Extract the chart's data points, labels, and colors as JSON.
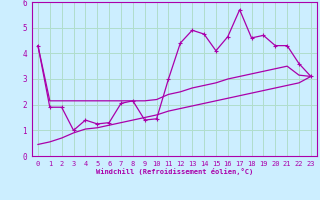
{
  "xlabel": "Windchill (Refroidissement éolien,°C)",
  "background_color": "#cceeff",
  "grid_color": "#b0ddcc",
  "line_color": "#aa00aa",
  "xlim": [
    -0.5,
    23.5
  ],
  "ylim": [
    0,
    6
  ],
  "xticks": [
    0,
    1,
    2,
    3,
    4,
    5,
    6,
    7,
    8,
    9,
    10,
    11,
    12,
    13,
    14,
    15,
    16,
    17,
    18,
    19,
    20,
    21,
    22,
    23
  ],
  "yticks": [
    0,
    1,
    2,
    3,
    4,
    5,
    6
  ],
  "main_y": [
    4.3,
    1.9,
    1.9,
    1.0,
    1.4,
    1.25,
    1.3,
    2.05,
    2.15,
    1.4,
    1.45,
    3.0,
    4.4,
    4.9,
    4.75,
    4.1,
    4.65,
    5.7,
    4.6,
    4.7,
    4.3,
    4.3,
    3.6,
    3.1
  ],
  "trend1_y": [
    4.3,
    2.15,
    2.15,
    2.15,
    2.15,
    2.15,
    2.15,
    2.15,
    2.15,
    2.15,
    2.2,
    2.4,
    2.5,
    2.65,
    2.75,
    2.85,
    3.0,
    3.1,
    3.2,
    3.3,
    3.4,
    3.5,
    3.15,
    3.1
  ],
  "trend2_y": [
    0.45,
    0.55,
    0.7,
    0.9,
    1.05,
    1.1,
    1.2,
    1.3,
    1.4,
    1.5,
    1.6,
    1.75,
    1.85,
    1.95,
    2.05,
    2.15,
    2.25,
    2.35,
    2.45,
    2.55,
    2.65,
    2.75,
    2.85,
    3.1
  ]
}
